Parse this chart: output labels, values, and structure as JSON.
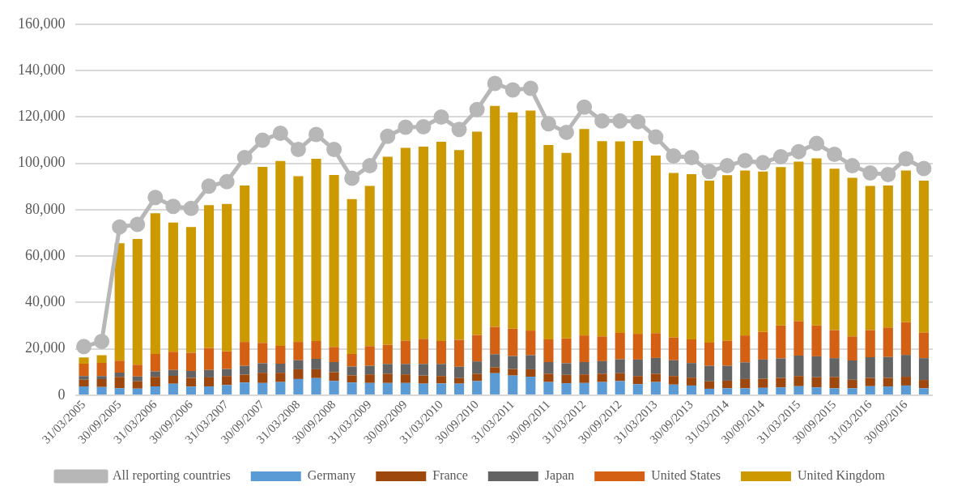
{
  "chart_data": {
    "type": "bar",
    "stacked": true,
    "grid": "y",
    "legend": "bottom",
    "marker": "circle",
    "categories": [
      "31/03/2005",
      null,
      "30/09/2005",
      null,
      "31/03/2006",
      null,
      "30/09/2006",
      null,
      "31/03/2007",
      null,
      "30/09/2007",
      null,
      "31/03/2008",
      null,
      "30/09/2008",
      null,
      "31/03/2009",
      null,
      "30/09/2009",
      null,
      "31/03/2010",
      null,
      "30/09/2010",
      null,
      "31/03/2011",
      null,
      "30/09/2011",
      null,
      "31/03/2012",
      null,
      "30/09/2012",
      null,
      "31/03/2013",
      null,
      "30/09/2013",
      null,
      "31/03/2014",
      null,
      "30/09/2014",
      null,
      "31/03/2015",
      null,
      "30/09/2015",
      null,
      "31/03/2016",
      null,
      "30/09/2016",
      null
    ],
    "ylim": [
      0,
      160000
    ],
    "yticks": [
      {
        "value": 0,
        "label": "0"
      },
      {
        "value": 20000,
        "label": "20,000"
      },
      {
        "value": 40000,
        "label": "40,000"
      },
      {
        "value": 60000,
        "label": "60,000"
      },
      {
        "value": 80000,
        "label": "80,000"
      },
      {
        "value": 100000,
        "label": "100,000"
      },
      {
        "value": 120000,
        "label": "120,000"
      },
      {
        "value": 140000,
        "label": "140,000"
      },
      {
        "value": 160000,
        "label": "160,000"
      }
    ],
    "series": [
      {
        "name": "Germany",
        "color": "#5b9bd5",
        "values": [
          3800,
          3600,
          3000,
          2900,
          3800,
          5000,
          3700,
          3800,
          4400,
          5500,
          5300,
          5700,
          7000,
          7400,
          6200,
          5500,
          5300,
          5300,
          5300,
          5000,
          5100,
          5000,
          6100,
          9500,
          8500,
          8000,
          5700,
          5200,
          5300,
          5700,
          6100,
          4800,
          5700,
          4600,
          4200,
          2800,
          3000,
          3000,
          3200,
          3400,
          3900,
          3400,
          3000,
          3000,
          3900,
          3800,
          4200,
          3000
        ]
      },
      {
        "name": "France",
        "color": "#9e480e",
        "values": [
          2900,
          3400,
          4900,
          3100,
          4100,
          3400,
          3800,
          3900,
          3900,
          3400,
          4400,
          4000,
          4200,
          3800,
          3800,
          3100,
          3700,
          4000,
          3700,
          3500,
          3200,
          2400,
          3200,
          2600,
          2800,
          3200,
          3600,
          3600,
          3700,
          3600,
          3400,
          3500,
          3600,
          3700,
          3400,
          3200,
          3300,
          4000,
          3900,
          4100,
          4400,
          4400,
          4900,
          3700,
          3600,
          3700,
          3800,
          3600
        ]
      },
      {
        "name": "Japan",
        "color": "#636363",
        "values": [
          1600,
          1300,
          1900,
          2100,
          2400,
          2500,
          3000,
          3200,
          3000,
          3800,
          4100,
          3900,
          3900,
          4500,
          4300,
          3800,
          3700,
          4200,
          4500,
          5000,
          5200,
          4900,
          5300,
          5600,
          5600,
          6100,
          5000,
          5000,
          5300,
          5400,
          6000,
          7100,
          6800,
          6800,
          6300,
          6700,
          6400,
          7200,
          8300,
          8400,
          8800,
          9000,
          8100,
          8300,
          8900,
          9000,
          9400,
          9400
        ]
      },
      {
        "name": "United States",
        "color": "#d46113",
        "values": [
          5300,
          5700,
          5100,
          5100,
          7500,
          7900,
          7800,
          9500,
          7600,
          10300,
          8800,
          7700,
          7900,
          7700,
          6500,
          5400,
          8500,
          8300,
          10000,
          10800,
          9900,
          11600,
          11400,
          11800,
          11800,
          10600,
          9800,
          10700,
          11500,
          10700,
          11400,
          11100,
          10700,
          9800,
          10200,
          10000,
          10800,
          11600,
          11900,
          14200,
          14800,
          13300,
          12100,
          10400,
          11700,
          12700,
          14100,
          11000
        ]
      },
      {
        "name": "United Kingdom",
        "color": "#cc9a00",
        "values": [
          2700,
          3300,
          50700,
          54200,
          60700,
          55700,
          54300,
          61600,
          63600,
          67500,
          75900,
          79700,
          71500,
          78600,
          74200,
          66800,
          69100,
          81100,
          83200,
          82900,
          85900,
          81900,
          87700,
          95300,
          93300,
          94900,
          83800,
          80000,
          89000,
          84200,
          82600,
          83200,
          76600,
          71000,
          71300,
          69900,
          71400,
          71100,
          69200,
          68300,
          68900,
          72100,
          69600,
          68400,
          62200,
          61300,
          65400,
          65600
        ]
      },
      {
        "name": "All reporting countries",
        "type": "line",
        "color": "#b7b7b7",
        "values": [
          21000,
          23200,
          72600,
          73700,
          85300,
          81500,
          80600,
          90200,
          92100,
          102500,
          110000,
          113000,
          106000,
          112500,
          106000,
          93600,
          99000,
          111700,
          115600,
          115800,
          120000,
          114700,
          123200,
          134500,
          131700,
          132400,
          117100,
          113400,
          124300,
          118300,
          118300,
          118000,
          111400,
          103200,
          102500,
          96500,
          99000,
          101200,
          100300,
          102900,
          105100,
          108600,
          103900,
          99000,
          95900,
          95200,
          102000,
          97800
        ]
      }
    ]
  }
}
